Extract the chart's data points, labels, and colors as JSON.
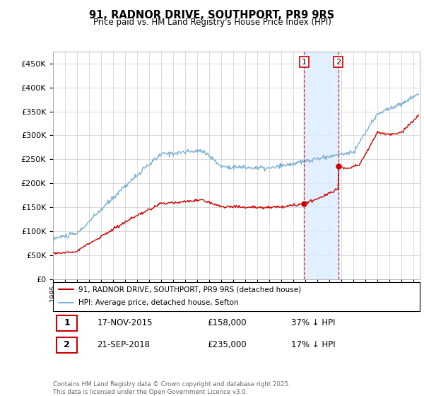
{
  "title": "91, RADNOR DRIVE, SOUTHPORT, PR9 9RS",
  "subtitle": "Price paid vs. HM Land Registry's House Price Index (HPI)",
  "hpi_label": "HPI: Average price, detached house, Sefton",
  "property_label": "91, RADNOR DRIVE, SOUTHPORT, PR9 9RS (detached house)",
  "hpi_color": "#7ab0d4",
  "property_color": "#cc0000",
  "sale1_date": "17-NOV-2015",
  "sale1_price": 158000,
  "sale1_pct": "37% ↓ HPI",
  "sale2_date": "21-SEP-2018",
  "sale2_price": 235000,
  "sale2_pct": "17% ↓ HPI",
  "vline1_x": 2015.88,
  "vline2_x": 2018.72,
  "shade_color": "#ddeeff",
  "ylim": [
    0,
    475000
  ],
  "xlim_start": 1995,
  "xlim_end": 2025.5,
  "footer": "Contains HM Land Registry data © Crown copyright and database right 2025.\nThis data is licensed under the Open Government Licence v3.0.",
  "background_color": "#ffffff",
  "grid_color": "#cccccc"
}
